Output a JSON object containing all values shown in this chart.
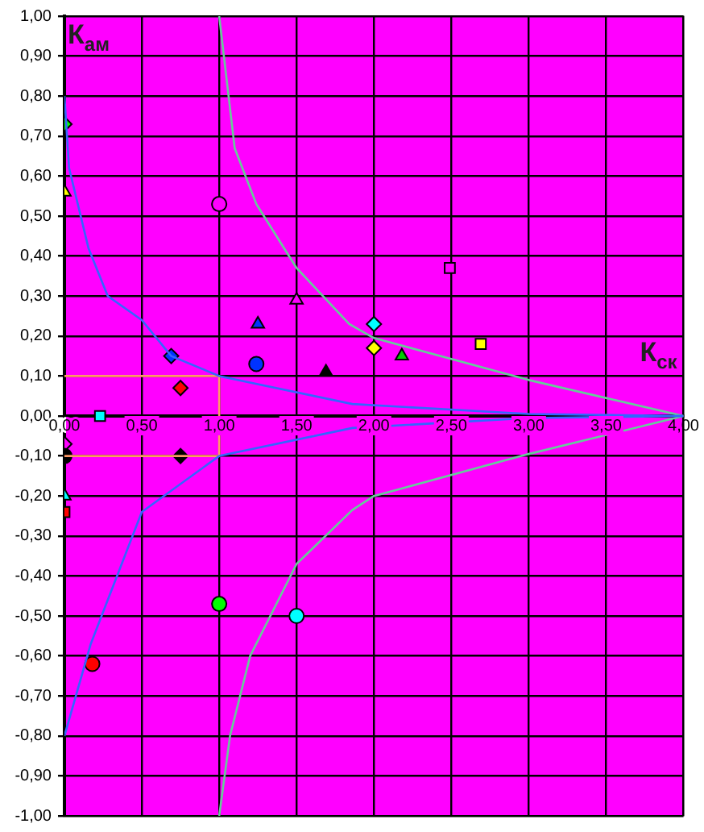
{
  "chart_data": {
    "type": "scatter",
    "xlabel": "К$_{ск}$",
    "ylabel": "К$_{ам}$",
    "xlim": [
      0,
      4
    ],
    "ylim": [
      -1,
      1
    ],
    "xticks": [
      {
        "value": 0,
        "label": "0,00"
      },
      {
        "value": 0.5,
        "label": "0,50"
      },
      {
        "value": 1,
        "label": "1,00"
      },
      {
        "value": 1.5,
        "label": "1,50"
      },
      {
        "value": 2,
        "label": "2,00"
      },
      {
        "value": 2.5,
        "label": "2,50"
      },
      {
        "value": 3,
        "label": "3,00"
      },
      {
        "value": 3.5,
        "label": "3,50"
      },
      {
        "value": 4,
        "label": "4,00"
      }
    ],
    "yticks": [
      {
        "value": -1,
        "label": "-1,00"
      },
      {
        "value": -0.9,
        "label": "-0,90"
      },
      {
        "value": -0.8,
        "label": "-0,80"
      },
      {
        "value": -0.7,
        "label": "-0,70"
      },
      {
        "value": -0.6,
        "label": "-0,60"
      },
      {
        "value": -0.5,
        "label": "-0,50"
      },
      {
        "value": -0.4,
        "label": "-0,40"
      },
      {
        "value": -0.3,
        "label": "-0,30"
      },
      {
        "value": -0.2,
        "label": "-0,20"
      },
      {
        "value": -0.1,
        "label": "-0,10"
      },
      {
        "value": 0,
        "label": "0,00"
      },
      {
        "value": 0.1,
        "label": "0,10"
      },
      {
        "value": 0.2,
        "label": "0,20"
      },
      {
        "value": 0.3,
        "label": "0,30"
      },
      {
        "value": 0.4,
        "label": "0,40"
      },
      {
        "value": 0.5,
        "label": "0,50"
      },
      {
        "value": 0.6,
        "label": "0,60"
      },
      {
        "value": 0.7,
        "label": "0,70"
      },
      {
        "value": 0.8,
        "label": "0,80"
      },
      {
        "value": 0.9,
        "label": "0,90"
      },
      {
        "value": 1,
        "label": "1,00"
      }
    ],
    "grid": true,
    "legend": false,
    "series": [
      {
        "type": "line",
        "marker": "none",
        "color": "#3366ff",
        "x": [
          0,
          0.03,
          0.155,
          0.28,
          0.5,
          0.69,
          1,
          1.86,
          3,
          4
        ],
        "values": [
          0.8,
          0.62,
          0.42,
          0.3,
          0.24,
          0.15,
          0.1,
          0.03,
          0.005,
          0
        ]
      },
      {
        "type": "line",
        "marker": "none",
        "color": "#3366ff",
        "x": [
          0,
          0.17,
          0.5,
          1,
          1.86,
          3,
          4
        ],
        "values": [
          -0.8,
          -0.57,
          -0.24,
          -0.1,
          -0.03,
          -0.005,
          0
        ]
      },
      {
        "type": "line",
        "marker": "none",
        "color": "#66cc99",
        "x": [
          1,
          1.1,
          1.24,
          1.5,
          1.84,
          2,
          3,
          4
        ],
        "values": [
          1,
          0.67,
          0.53,
          0.37,
          0.23,
          0.195,
          0.09,
          0
        ]
      },
      {
        "type": "line",
        "marker": "none",
        "color": "#66cc99",
        "x": [
          1,
          1.07,
          1.2,
          1.5,
          1.86,
          2,
          3,
          4
        ],
        "values": [
          -1,
          -0.8,
          -0.6,
          -0.37,
          -0.235,
          -0.2,
          -0.095,
          0
        ]
      },
      {
        "type": "line",
        "marker": "none",
        "color": "#ff9966",
        "x": [
          0,
          1,
          1,
          0
        ],
        "values": [
          0.1,
          0.1,
          -0.1,
          -0.1
        ]
      },
      {
        "type": "scatter",
        "marker": "circle",
        "x": [
          1,
          1.24,
          0,
          0.18,
          1,
          1.5
        ],
        "values": [
          0.53,
          0.13,
          -0.1,
          -0.62,
          -0.47,
          -0.5
        ],
        "colors": [
          "#ff00ff",
          "#0033ff",
          "#000000",
          "#ff0000",
          "#00ff00",
          "#00ffff"
        ]
      },
      {
        "type": "scatter",
        "marker": "triangle",
        "x": [
          0,
          1.5,
          1.25,
          1.69,
          2.18,
          0
        ],
        "values": [
          0.56,
          0.29,
          0.23,
          0.11,
          0.15,
          -0.2
        ],
        "colors": [
          "#ffff00",
          "#ff00ff",
          "#0033ff",
          "#000000",
          "#00cc00",
          "#00ffff"
        ]
      },
      {
        "type": "scatter",
        "marker": "diamond",
        "x": [
          0,
          0.69,
          0.75,
          2,
          2,
          0,
          0.75
        ],
        "values": [
          0.73,
          0.15,
          0.07,
          0.23,
          0.17,
          -0.07,
          -0.1
        ],
        "colors": [
          "#00ff00",
          "#0033ff",
          "#ff0000",
          "#00ffff",
          "#ffff00",
          "#ff00ff",
          "#000000"
        ]
      },
      {
        "type": "scatter",
        "marker": "square",
        "x": [
          0.23,
          2.49,
          2.69,
          0
        ],
        "values": [
          0,
          0.37,
          0.18,
          -0.24
        ],
        "colors": [
          "#00ffff",
          "#ff00ff",
          "#ffff00",
          "#ff0000"
        ]
      }
    ]
  }
}
